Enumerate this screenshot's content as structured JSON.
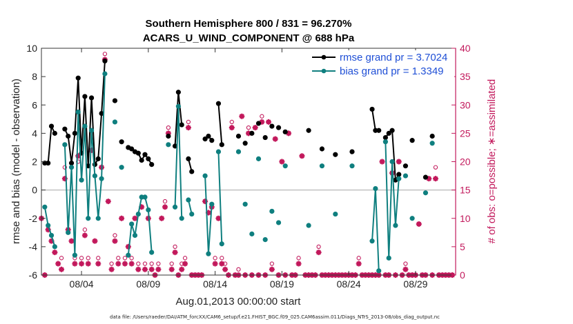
{
  "title_line1": "Southern Hemisphere 800 / 831 = 96.270%",
  "title_line2": "ACARS_U_WIND_COMPONENT @ 688 hPa",
  "footer": "data file: /Users/raeder/DAI/ATM_forcXX/CAM6_setup/f.e21.FHIST_BGC.f09_025.CAM6assim.011/Diags_NTrS_2013-08/obs_diag_output.nc",
  "chart_data": {
    "type": "line",
    "title": "Southern Hemisphere 800 / 831 = 96.270%",
    "subtitle": "ACARS_U_WIND_COMPONENT @ 688 hPa",
    "xlabel": "Aug.01,2013 00:00:00 start",
    "ylabel": "rmse and bias (model - observation)",
    "ylabel_right": "# of obs: o=possible; ∗=assimilated",
    "xlim": [
      0.5,
      31.5
    ],
    "ylim": [
      -6,
      10
    ],
    "ylim_right": [
      0,
      40
    ],
    "x_ticks": [
      3.5,
      8.5,
      13.5,
      18.5,
      23.5,
      28.5
    ],
    "x_tick_labels": [
      "08/04",
      "08/09",
      "08/14",
      "08/19",
      "08/24",
      "08/29"
    ],
    "y_ticks": [
      -6,
      -4,
      -2,
      0,
      2,
      4,
      6,
      8,
      10
    ],
    "y_ticks_right": [
      0,
      5,
      10,
      15,
      20,
      25,
      30,
      35,
      40
    ],
    "zero_line": true,
    "grid": false,
    "legend_position": "top-right",
    "series": [
      {
        "name": "rmse grand pr = 3.7024",
        "color": "#000000",
        "x": [
          0.5,
          0.75,
          1.0,
          1.25,
          1.5,
          1.75,
          2.0,
          2.25,
          2.5,
          2.75,
          3.0,
          3.25,
          3.5,
          3.75,
          4.0,
          4.25,
          4.5,
          4.75,
          5.0,
          5.25,
          5.5,
          5.75,
          6.0,
          6.25,
          6.5,
          6.75,
          7.0,
          7.25,
          7.5,
          7.75,
          8.0,
          8.25,
          8.5,
          8.75,
          9.0,
          9.25,
          9.5,
          9.75,
          10.0,
          10.25,
          10.5,
          10.75,
          11.0,
          11.25,
          11.5,
          11.75,
          12.0,
          12.25,
          12.5,
          12.75,
          13.0,
          13.25,
          13.5,
          13.75,
          14.0,
          14.25,
          14.5,
          14.75,
          15.0,
          15.25,
          15.5,
          15.75,
          16.0,
          16.25,
          16.5,
          16.75,
          17.0,
          17.25,
          17.5,
          17.75,
          18.0,
          18.25,
          18.5,
          18.75,
          19.0,
          19.25,
          19.5,
          19.75,
          20.0,
          20.25,
          20.5,
          20.75,
          21.0,
          21.25,
          21.5,
          21.75,
          22.0,
          22.25,
          22.5,
          22.75,
          23.0,
          23.25,
          23.5,
          23.75,
          24.0,
          24.25,
          24.5,
          24.75,
          25.0,
          25.25,
          25.5,
          25.75,
          26.0,
          26.25,
          26.5,
          26.75,
          27.0,
          27.25,
          27.5,
          27.75,
          28.0,
          28.25,
          28.5,
          28.75,
          29.0,
          29.25,
          29.5,
          29.75,
          30.0,
          30.25,
          30.5,
          30.75,
          31.0,
          31.25
        ],
        "values": [
          null,
          1.9,
          1.9,
          4.5,
          4.0,
          null,
          null,
          4.3,
          3.8,
          1.9,
          4.0,
          7.9,
          2.6,
          6.6,
          1.7,
          6.5,
          1.8,
          2.2,
          5.4,
          9.1,
          null,
          null,
          6.3,
          null,
          3.4,
          null,
          3.0,
          2.9,
          2.7,
          2.6,
          2.1,
          2.5,
          2.2,
          1.8,
          null,
          null,
          null,
          null,
          3.8,
          null,
          3.1,
          6.9,
          4.6,
          null,
          2.2,
          1.3,
          null,
          null,
          null,
          3.6,
          3.8,
          3.5,
          null,
          6.1,
          3.2,
          null,
          null,
          null,
          null,
          3.8,
          null,
          3.3,
          null,
          4.0,
          null,
          4.7,
          null,
          3.7,
          null,
          4.5,
          null,
          4.4,
          null,
          4.1,
          null,
          null,
          null,
          null,
          null,
          null,
          4.2,
          null,
          null,
          null,
          2.9,
          null,
          null,
          null,
          2.5,
          null,
          null,
          null,
          null,
          2.7,
          null,
          null,
          null,
          null,
          null,
          5.7,
          4.2,
          4.2,
          null,
          3.7,
          4.0,
          4.2,
          0.7,
          1.1,
          null,
          1.7,
          null,
          3.5,
          null,
          null,
          null,
          0.9,
          null,
          3.8,
          null,
          null,
          null,
          null,
          null,
          null
        ],
        "grand": 3.7024
      },
      {
        "name": "bias grand pr = 1.3349",
        "color": "#0f7f7f",
        "x": [
          0.5,
          0.75,
          1.0,
          1.25,
          1.5,
          1.75,
          2.0,
          2.25,
          2.5,
          2.75,
          3.0,
          3.25,
          3.5,
          3.75,
          4.0,
          4.25,
          4.5,
          4.75,
          5.0,
          5.25,
          5.5,
          5.75,
          6.0,
          6.25,
          6.5,
          6.75,
          7.0,
          7.25,
          7.5,
          7.75,
          8.0,
          8.25,
          8.5,
          8.75,
          9.0,
          9.25,
          9.5,
          9.75,
          10.0,
          10.25,
          10.5,
          10.75,
          11.0,
          11.25,
          11.5,
          11.75,
          12.0,
          12.25,
          12.5,
          12.75,
          13.0,
          13.25,
          13.5,
          13.75,
          14.0,
          14.25,
          14.5,
          14.75,
          15.0,
          15.25,
          15.5,
          15.75,
          16.0,
          16.25,
          16.5,
          16.75,
          17.0,
          17.25,
          17.5,
          17.75,
          18.0,
          18.25,
          18.5,
          18.75,
          19.0,
          19.25,
          19.5,
          19.75,
          20.0,
          20.25,
          20.5,
          20.75,
          21.0,
          21.25,
          21.5,
          21.75,
          22.0,
          22.25,
          22.5,
          22.75,
          23.0,
          23.25,
          23.5,
          23.75,
          24.0,
          24.25,
          24.5,
          24.75,
          25.0,
          25.25,
          25.5,
          25.75,
          26.0,
          26.25,
          26.5,
          26.75,
          27.0,
          27.25,
          27.5,
          27.75,
          28.0,
          28.25,
          28.5,
          28.75,
          29.0,
          29.25,
          29.5,
          29.75,
          30.0,
          30.25,
          30.5,
          30.75,
          31.0,
          31.25
        ],
        "values": [
          null,
          -1.2,
          -2.5,
          -3.2,
          -4.0,
          null,
          null,
          3.2,
          -3.0,
          1.6,
          -4.6,
          5.5,
          0.7,
          4.5,
          -2.0,
          4.2,
          1.0,
          -2.0,
          0.8,
          8.2,
          null,
          null,
          4.8,
          null,
          1.6,
          null,
          -4.6,
          -2.4,
          -3.2,
          -1.7,
          -0.5,
          -0.5,
          -1.4,
          -4.4,
          null,
          null,
          null,
          null,
          3.2,
          null,
          -1.2,
          5.9,
          -2.0,
          null,
          -0.7,
          -1.7,
          null,
          null,
          null,
          1.0,
          -4.5,
          -1.0,
          null,
          2.7,
          -3.8,
          null,
          null,
          null,
          null,
          2.7,
          null,
          -1.0,
          null,
          -3.1,
          null,
          2.2,
          null,
          -3.5,
          null,
          -1.5,
          null,
          -2.3,
          null,
          1.7,
          null,
          null,
          null,
          null,
          null,
          null,
          -2.5,
          null,
          null,
          null,
          1.7,
          null,
          null,
          null,
          -1.7,
          null,
          null,
          null,
          null,
          1.7,
          null,
          null,
          null,
          null,
          null,
          -3.6,
          0.1,
          -5.7,
          null,
          3.4,
          -4.8,
          2.0,
          -2.5,
          0.8,
          null,
          1.0,
          null,
          -2.0,
          null,
          null,
          null,
          -0.2,
          null,
          3.3,
          null,
          null,
          null,
          null,
          null,
          null
        ],
        "grand": 1.3349
      }
    ],
    "obs_possible": {
      "name": "# of obs possible",
      "marker": "o",
      "color": "#c2185b",
      "x": [
        0.5,
        0.75,
        1.0,
        1.25,
        1.5,
        1.75,
        2.0,
        2.25,
        2.5,
        2.75,
        3.0,
        3.25,
        3.5,
        3.75,
        4.0,
        4.25,
        4.5,
        4.75,
        5.0,
        5.25,
        5.5,
        5.75,
        6.0,
        6.25,
        6.5,
        6.75,
        7.0,
        7.25,
        7.5,
        7.75,
        8.0,
        8.25,
        8.5,
        8.75,
        9.0,
        9.25,
        9.5,
        9.75,
        10.0,
        10.25,
        10.5,
        10.75,
        11.0,
        11.25,
        11.5,
        11.75,
        12.0,
        12.25,
        12.5,
        12.75,
        13.0,
        13.25,
        13.5,
        13.75,
        14.0,
        14.25,
        14.5,
        14.75,
        15.0,
        15.25,
        15.5,
        15.75,
        16.0,
        16.25,
        16.5,
        16.75,
        17.0,
        17.25,
        17.5,
        17.75,
        18.0,
        18.25,
        18.5,
        18.75,
        19.0,
        19.25,
        19.5,
        19.75,
        20.0,
        20.25,
        20.5,
        20.75,
        21.0,
        21.25,
        21.5,
        21.75,
        22.0,
        22.25,
        22.5,
        22.75,
        23.0,
        23.25,
        23.5,
        23.75,
        24.0,
        24.25,
        24.5,
        24.75,
        25.0,
        25.25,
        25.5,
        25.75,
        26.0,
        26.25,
        26.5,
        26.75,
        27.0,
        27.25,
        27.5,
        27.75,
        28.0,
        28.25,
        28.5,
        28.75,
        29.0,
        29.25,
        29.5,
        29.75,
        30.0,
        30.25,
        30.5,
        30.75,
        31.0,
        31.25
      ],
      "values": [
        10,
        0,
        8,
        6,
        4,
        2,
        3,
        19,
        8,
        6,
        3,
        20,
        3,
        8,
        3,
        22,
        6,
        3,
        19,
        39,
        13,
        2,
        7,
        3,
        10,
        3,
        5,
        3,
        10,
        2,
        12,
        2,
        10,
        2,
        0,
        2,
        10,
        13,
        26,
        2,
        5,
        0,
        2,
        3,
        27,
        0,
        0,
        0,
        0,
        13,
        11,
        12,
        3,
        10,
        3,
        2,
        0,
        27,
        0,
        1,
        28,
        0,
        26,
        0,
        26,
        0,
        28,
        0,
        27,
        2,
        24,
        0,
        20,
        0,
        25,
        0,
        0,
        3,
        21,
        0,
        0,
        0,
        0,
        5,
        0,
        0,
        0,
        0,
        0,
        0,
        0,
        0,
        0,
        0,
        0,
        3,
        0,
        0,
        0,
        0,
        0,
        0,
        20,
        0,
        0,
        18,
        0,
        20,
        0,
        2,
        0,
        0,
        0,
        9,
        0,
        0,
        17,
        0,
        19,
        0,
        0,
        0,
        0,
        0
      ],
      "note": "values are counts on the right axis"
    },
    "obs_assimilated": {
      "name": "# of obs assimilated",
      "marker": "*",
      "color": "#c2185b",
      "x": [
        0.5,
        0.75,
        1.0,
        1.25,
        1.5,
        1.75,
        2.0,
        2.25,
        2.5,
        2.75,
        3.0,
        3.25,
        3.5,
        3.75,
        4.0,
        4.25,
        4.5,
        4.75,
        5.0,
        5.25,
        5.5,
        5.75,
        6.0,
        6.25,
        6.5,
        6.75,
        7.0,
        7.25,
        7.5,
        7.75,
        8.0,
        8.25,
        8.5,
        8.75,
        9.0,
        9.25,
        9.5,
        9.75,
        10.0,
        10.25,
        10.5,
        10.75,
        11.0,
        11.25,
        11.5,
        11.75,
        12.0,
        12.25,
        12.5,
        12.75,
        13.0,
        13.25,
        13.5,
        13.75,
        14.0,
        14.25,
        14.5,
        14.75,
        15.0,
        15.25,
        15.5,
        15.75,
        16.0,
        16.25,
        16.5,
        16.75,
        17.0,
        17.25,
        17.5,
        17.75,
        18.0,
        18.25,
        18.5,
        18.75,
        19.0,
        19.25,
        19.5,
        19.75,
        20.0,
        20.25,
        20.5,
        20.75,
        21.0,
        21.25,
        21.5,
        21.75,
        22.0,
        22.25,
        22.5,
        22.75,
        23.0,
        23.25,
        23.5,
        23.75,
        24.0,
        24.25,
        24.5,
        24.75,
        25.0,
        25.25,
        25.5,
        25.75,
        26.0,
        26.25,
        26.5,
        26.75,
        27.0,
        27.25,
        27.5,
        27.75,
        28.0,
        28.25,
        28.5,
        28.75,
        29.0,
        29.25,
        29.5,
        29.75,
        30.0,
        30.25,
        30.5,
        30.75,
        31.0,
        31.25
      ],
      "values": [
        10,
        0,
        8,
        6,
        4,
        2,
        1,
        17,
        8,
        6,
        2,
        21,
        2,
        7,
        2,
        22,
        6,
        2,
        19,
        38,
        13,
        1,
        6,
        2,
        10,
        2,
        5,
        2,
        10,
        1,
        12,
        1,
        10,
        1,
        0,
        1,
        10,
        12,
        25,
        1,
        4,
        0,
        1,
        2,
        26,
        0,
        0,
        0,
        0,
        13,
        11,
        12,
        2,
        10,
        2,
        1,
        0,
        26,
        0,
        0,
        28,
        0,
        25,
        0,
        26,
        0,
        27,
        0,
        27,
        1,
        24,
        0,
        20,
        0,
        25,
        0,
        0,
        2,
        21,
        0,
        0,
        0,
        0,
        4,
        0,
        0,
        0,
        0,
        0,
        0,
        0,
        0,
        0,
        0,
        0,
        2,
        0,
        0,
        0,
        0,
        0,
        0,
        20,
        0,
        0,
        18,
        0,
        20,
        0,
        1,
        0,
        0,
        0,
        9,
        0,
        0,
        17,
        0,
        17,
        0,
        0,
        0,
        0,
        0
      ]
    }
  }
}
